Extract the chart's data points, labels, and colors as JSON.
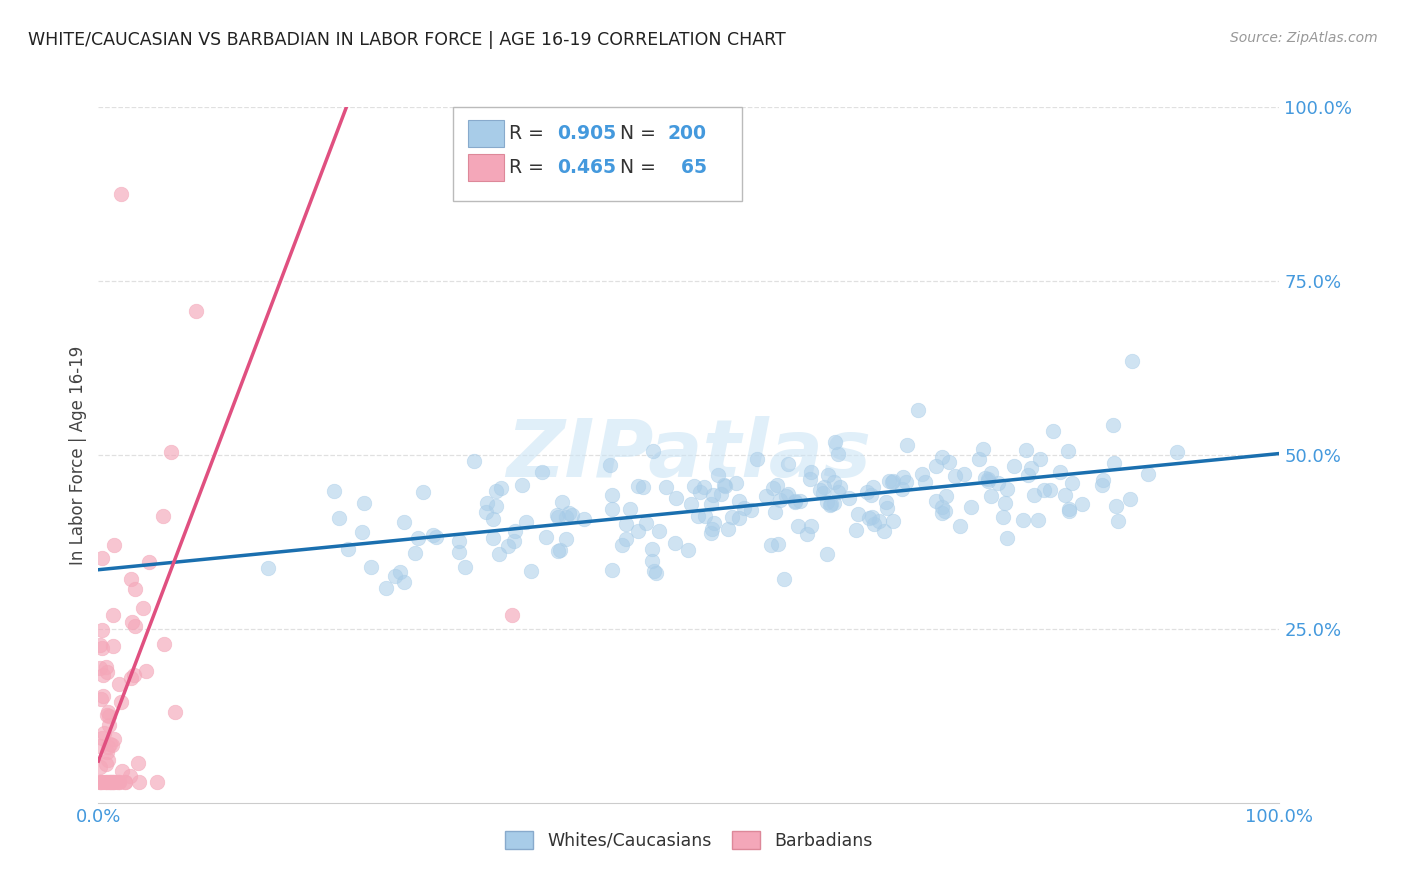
{
  "title": "WHITE/CAUCASIAN VS BARBADIAN IN LABOR FORCE | AGE 16-19 CORRELATION CHART",
  "source": "Source: ZipAtlas.com",
  "ylabel": "In Labor Force | Age 16-19",
  "watermark": "ZIPatlas",
  "blue_R": 0.905,
  "blue_N": 200,
  "pink_R": 0.465,
  "pink_N": 65,
  "blue_color": "#a8cce8",
  "blue_line_color": "#1a6faf",
  "pink_color": "#f4a7b9",
  "pink_line_color": "#e05080",
  "tick_label_color": "#4499dd",
  "grid_color": "#e0e0e0",
  "background_color": "#ffffff",
  "xlim": [
    0.0,
    1.0
  ],
  "ylim": [
    0.0,
    1.0
  ],
  "yticks": [
    0.25,
    0.5,
    0.75,
    1.0
  ],
  "ytick_labels": [
    "25.0%",
    "50.0%",
    "75.0%",
    "100.0%"
  ],
  "xticks": [
    0.0,
    0.2,
    0.4,
    0.6,
    0.8,
    1.0
  ],
  "xtick_labels": [
    "0.0%",
    "",
    "",
    "",
    "",
    "100.0%"
  ],
  "blue_line_x": [
    0.0,
    1.0
  ],
  "blue_line_y": [
    0.335,
    0.502
  ],
  "pink_line_x": [
    0.0,
    0.21
  ],
  "pink_line_y": [
    0.06,
    1.0
  ]
}
